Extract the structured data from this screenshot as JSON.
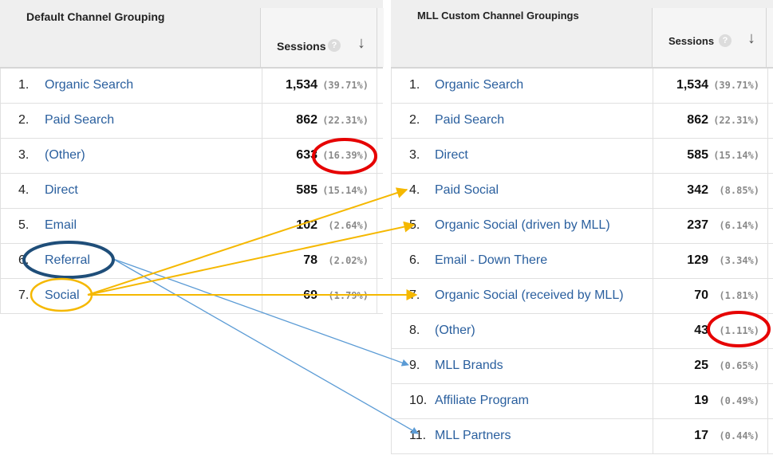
{
  "left": {
    "title": "Default Channel Grouping",
    "sessions_label": "Sessions",
    "rows": [
      {
        "num": "1.",
        "name": "Organic Search",
        "value": "1,534",
        "pct": "(39.71%)"
      },
      {
        "num": "2.",
        "name": "Paid Search",
        "value": "862",
        "pct": "(22.31%)"
      },
      {
        "num": "3.",
        "name": "(Other)",
        "value": "633",
        "pct": "(16.39%)"
      },
      {
        "num": "4.",
        "name": "Direct",
        "value": "585",
        "pct": "(15.14%)"
      },
      {
        "num": "5.",
        "name": "Email",
        "value": "102",
        "pct": "(2.64%)"
      },
      {
        "num": "6.",
        "name": "Referral",
        "value": "78",
        "pct": "(2.02%)"
      },
      {
        "num": "7.",
        "name": "Social",
        "value": "69",
        "pct": "(1.79%)"
      }
    ]
  },
  "right": {
    "title": "MLL Custom Channel Groupings",
    "sessions_label": "Sessions",
    "rows": [
      {
        "num": "1.",
        "name": "Organic Search",
        "value": "1,534",
        "pct": "(39.71%)"
      },
      {
        "num": "2.",
        "name": "Paid Search",
        "value": "862",
        "pct": "(22.31%)"
      },
      {
        "num": "3.",
        "name": "Direct",
        "value": "585",
        "pct": "(15.14%)"
      },
      {
        "num": "4.",
        "name": "Paid Social",
        "value": "342",
        "pct": "(8.85%)"
      },
      {
        "num": "5.",
        "name": "Organic Social (driven by MLL)",
        "value": "237",
        "pct": "(6.14%)"
      },
      {
        "num": "6.",
        "name": "Email - Down There",
        "value": "129",
        "pct": "(3.34%)"
      },
      {
        "num": "7.",
        "name": "Organic Social (received by MLL)",
        "value": "70",
        "pct": "(1.81%)"
      },
      {
        "num": "8.",
        "name": "(Other)",
        "value": "43",
        "pct": "(1.11%)"
      },
      {
        "num": "9.",
        "name": "MLL Brands",
        "value": "25",
        "pct": "(0.65%)"
      },
      {
        "num": "10.",
        "name": "Affiliate Program",
        "value": "19",
        "pct": "(0.49%)"
      },
      {
        "num": "11.",
        "name": "MLL Partners",
        "value": "17",
        "pct": "(0.44%)"
      }
    ]
  },
  "icons": {
    "help": "help-icon",
    "sort": "sort-down-arrow-icon"
  },
  "colors": {
    "link": "#2a5f9e",
    "red_highlight": "#e60000",
    "navy_highlight": "#1f4e79",
    "yellow_highlight": "#f5b800",
    "blue_arrow": "#5b9bd5"
  }
}
